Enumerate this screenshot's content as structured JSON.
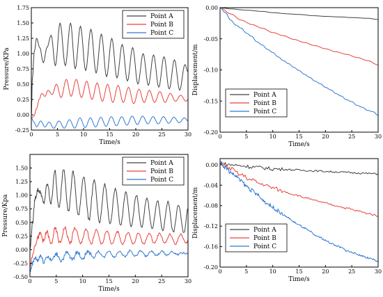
{
  "chart_data": [
    {
      "type": "line",
      "panel": "top-left",
      "xlabel": "Time/s",
      "ylabel": "Pressure/KPa",
      "xlim": [
        0,
        30
      ],
      "ylim": [
        -0.25,
        1.75
      ],
      "xticks": [
        0,
        5,
        10,
        15,
        20,
        25,
        30
      ],
      "xtick_labels": [
        "0",
        "5",
        "10",
        "15",
        "20",
        "25",
        "30"
      ],
      "yticks": [
        -0.25,
        0,
        0.25,
        0.5,
        0.75,
        1,
        1.25,
        1.5,
        1.75
      ],
      "ytick_labels": [
        "-0.25",
        "0.00",
        "0.25",
        "0.50",
        "0.75",
        "1.00",
        "1.25",
        "1.50",
        "1.75"
      ],
      "legend_position": "top-right",
      "noisy": false,
      "series": [
        {
          "name": "Point A",
          "color": "#404040",
          "x": [
            0,
            0.2,
            0.6,
            1.0,
            1.6,
            2.3,
            3.0,
            3.8,
            4.6,
            5.5,
            6.5,
            7.5,
            8.4,
            9.4,
            10.4,
            11.4,
            12.4,
            13.4,
            14.4,
            15.4,
            16.4,
            17.4,
            18.4,
            19.4,
            20.4,
            21.4,
            22.4,
            23.4,
            24.4,
            25.4,
            26.4,
            27.4,
            28.4,
            29.4,
            30
          ],
          "y": [
            0,
            0.6,
            1.05,
            1.25,
            1.1,
            0.85,
            1.1,
            1.3,
            0.8,
            1.5,
            0.8,
            1.5,
            0.75,
            1.45,
            0.72,
            1.4,
            0.68,
            1.32,
            0.62,
            1.25,
            0.6,
            1.15,
            0.55,
            1.1,
            0.5,
            1.0,
            0.48,
            0.98,
            0.45,
            0.95,
            0.42,
            0.9,
            0.4,
            0.82,
            0.7
          ]
        },
        {
          "name": "Point B",
          "color": "#e8413c",
          "x": [
            0,
            0.5,
            1.0,
            1.5,
            2.0,
            2.6,
            3.2,
            4.0,
            4.8,
            5.7,
            6.7,
            7.6,
            8.6,
            9.6,
            10.6,
            11.6,
            12.6,
            13.6,
            14.6,
            15.6,
            16.6,
            17.6,
            18.6,
            19.6,
            20.6,
            21.6,
            22.6,
            23.6,
            24.6,
            25.6,
            26.6,
            27.6,
            28.6,
            29.6,
            30
          ],
          "y": [
            -0.05,
            -0.02,
            0.1,
            0.25,
            0.35,
            0.3,
            0.4,
            0.33,
            0.5,
            0.28,
            0.58,
            0.3,
            0.58,
            0.28,
            0.55,
            0.25,
            0.52,
            0.22,
            0.5,
            0.2,
            0.48,
            0.2,
            0.45,
            0.18,
            0.42,
            0.2,
            0.4,
            0.2,
            0.38,
            0.2,
            0.35,
            0.22,
            0.32,
            0.22,
            0.25
          ]
        },
        {
          "name": "Point C",
          "color": "#2f78d2",
          "x": [
            0,
            0.5,
            1.0,
            1.8,
            2.6,
            3.4,
            4.3,
            5.3,
            6.3,
            7.3,
            8.3,
            9.3,
            10.3,
            11.3,
            12.3,
            13.3,
            14.3,
            15.3,
            16.3,
            17.3,
            18.3,
            19.3,
            20.3,
            21.3,
            22.3,
            23.3,
            24.3,
            25.3,
            26.3,
            27.3,
            28.3,
            29.3,
            30
          ],
          "y": [
            -0.05,
            -0.12,
            -0.2,
            -0.1,
            -0.2,
            -0.12,
            -0.22,
            -0.1,
            -0.22,
            -0.08,
            -0.22,
            -0.05,
            -0.21,
            -0.05,
            -0.2,
            -0.04,
            -0.19,
            -0.03,
            -0.18,
            -0.03,
            -0.17,
            -0.02,
            -0.16,
            -0.02,
            -0.15,
            -0.03,
            -0.15,
            -0.03,
            -0.14,
            -0.04,
            -0.13,
            -0.05,
            -0.1
          ]
        }
      ]
    },
    {
      "type": "line",
      "panel": "top-right",
      "xlabel": "Time/s",
      "ylabel": "Displacement/m",
      "xlim": [
        0,
        30
      ],
      "ylim": [
        -0.2,
        0
      ],
      "xticks": [
        0,
        5,
        10,
        15,
        20,
        25,
        30
      ],
      "xtick_labels": [
        "0",
        "5",
        "10",
        "15",
        "20",
        "25",
        "30"
      ],
      "yticks": [
        -0.2,
        -0.15,
        -0.1,
        -0.05,
        0
      ],
      "ytick_labels": [
        "-0.20",
        "-0.15",
        "-0.10",
        "-0.05",
        "0.00"
      ],
      "legend_position": "bottom-left",
      "noisy": false,
      "series": [
        {
          "name": "Point A",
          "color": "#404040",
          "x": [
            0,
            2,
            5,
            8,
            10,
            13,
            15,
            18,
            20,
            23,
            25,
            28,
            30
          ],
          "y": [
            0,
            -0.002,
            -0.004,
            -0.006,
            -0.008,
            -0.01,
            -0.011,
            -0.013,
            -0.014,
            -0.015,
            -0.016,
            -0.017,
            -0.019
          ]
        },
        {
          "name": "Point B",
          "color": "#e8413c",
          "x": [
            0,
            2,
            4,
            6,
            8,
            10,
            12,
            14,
            16,
            18,
            20,
            22,
            24,
            26,
            28,
            30
          ],
          "y": [
            0,
            -0.01,
            -0.02,
            -0.027,
            -0.033,
            -0.04,
            -0.045,
            -0.051,
            -0.056,
            -0.061,
            -0.066,
            -0.071,
            -0.075,
            -0.08,
            -0.085,
            -0.092
          ]
        },
        {
          "name": "Point C",
          "color": "#2f78d2",
          "x": [
            0,
            1,
            2,
            3,
            4,
            5,
            6,
            7,
            8,
            9,
            10,
            11,
            12,
            13,
            14,
            15,
            16,
            17,
            18,
            19,
            20,
            21,
            22,
            23,
            24,
            25,
            26,
            27,
            28,
            29,
            30
          ],
          "y": [
            0,
            -0.008,
            -0.02,
            -0.028,
            -0.033,
            -0.041,
            -0.046,
            -0.055,
            -0.06,
            -0.067,
            -0.072,
            -0.079,
            -0.085,
            -0.09,
            -0.096,
            -0.101,
            -0.107,
            -0.112,
            -0.118,
            -0.122,
            -0.128,
            -0.132,
            -0.138,
            -0.142,
            -0.148,
            -0.151,
            -0.157,
            -0.16,
            -0.165,
            -0.167,
            -0.173
          ]
        }
      ]
    },
    {
      "type": "line",
      "panel": "bottom-left",
      "xlabel": "Time/s",
      "ylabel": "Pressure/Kpa",
      "xlim": [
        0,
        30
      ],
      "ylim": [
        -0.5,
        1.75
      ],
      "xticks": [
        0,
        5,
        10,
        15,
        20,
        25,
        30
      ],
      "xtick_labels": [
        "0",
        "5",
        "10",
        "15",
        "20",
        "25",
        "30"
      ],
      "yticks": [
        -0.5,
        -0.25,
        0,
        0.25,
        0.5,
        0.75,
        1,
        1.25,
        1.5
      ],
      "ytick_labels": [
        "-0.50",
        "-0.25",
        "0.00",
        "0.25",
        "0.50",
        "0.75",
        "1.00",
        "1.25",
        "1.50"
      ],
      "legend_position": "top-right",
      "noisy": true,
      "series": [
        {
          "name": "Point A",
          "color": "#404040",
          "x": [
            0,
            0.5,
            1.0,
            1.5,
            2.0,
            2.6,
            3.3,
            4.0,
            4.7,
            5.5,
            6.4,
            7.3,
            8.2,
            9.2,
            10.2,
            11.2,
            12.2,
            13.2,
            14.2,
            15.2,
            16.2,
            17.2,
            18.2,
            19.2,
            20.2,
            21.2,
            22.2,
            23.2,
            24.2,
            25.2,
            26.2,
            27.2,
            28.2,
            29.2,
            30
          ],
          "y": [
            0,
            0.5,
            0.95,
            1.1,
            1.05,
            0.85,
            1.2,
            0.85,
            1.45,
            0.75,
            1.5,
            0.7,
            1.42,
            0.62,
            1.35,
            0.55,
            1.28,
            0.5,
            1.2,
            0.48,
            1.12,
            0.45,
            1.05,
            0.42,
            1.0,
            0.4,
            0.95,
            0.38,
            0.9,
            0.35,
            0.88,
            0.32,
            0.82,
            0.3,
            0.75
          ]
        },
        {
          "name": "Point B",
          "color": "#e8413c",
          "x": [
            0,
            0.5,
            1.0,
            1.5,
            2.0,
            2.6,
            3.2,
            4.0,
            4.8,
            5.7,
            6.6,
            7.6,
            8.6,
            9.6,
            10.6,
            11.6,
            12.6,
            13.6,
            14.6,
            15.6,
            16.6,
            17.6,
            18.6,
            19.6,
            20.6,
            21.6,
            22.6,
            23.6,
            24.6,
            25.6,
            26.6,
            27.6,
            28.6,
            29.6,
            30
          ],
          "y": [
            -0.3,
            -0.1,
            0.1,
            0.22,
            0.3,
            0.15,
            0.33,
            0.1,
            0.38,
            0.12,
            0.4,
            0.12,
            0.4,
            0.1,
            0.38,
            0.1,
            0.36,
            0.1,
            0.35,
            0.1,
            0.33,
            0.1,
            0.32,
            0.1,
            0.3,
            0.1,
            0.3,
            0.12,
            0.3,
            0.12,
            0.28,
            0.1,
            0.28,
            0.12,
            0.15
          ]
        },
        {
          "name": "Point C",
          "color": "#2f78d2",
          "x": [
            0,
            0.5,
            1.0,
            1.5,
            2.0,
            2.6,
            3.3,
            4.1,
            5.0,
            6.0,
            7.0,
            8.0,
            9.0,
            10.0,
            11.0,
            12.0,
            13.0,
            14.0,
            15.0,
            16.0,
            17.0,
            18.0,
            19.0,
            20.0,
            21.0,
            22.0,
            23.0,
            24.0,
            25.0,
            26.0,
            27.0,
            28.0,
            29.0,
            30
          ],
          "y": [
            -0.4,
            -0.25,
            -0.15,
            -0.2,
            -0.1,
            -0.22,
            -0.12,
            -0.2,
            -0.08,
            -0.2,
            -0.06,
            -0.18,
            -0.05,
            -0.16,
            -0.03,
            -0.15,
            -0.03,
            -0.14,
            -0.02,
            -0.14,
            -0.02,
            -0.13,
            -0.02,
            -0.12,
            -0.02,
            -0.12,
            -0.03,
            -0.11,
            -0.03,
            -0.1,
            -0.04,
            -0.09,
            -0.06,
            -0.08
          ]
        }
      ]
    },
    {
      "type": "line",
      "panel": "bottom-right",
      "xlabel": "Time/s",
      "ylabel": "Displacement/m",
      "xlim": [
        0,
        30
      ],
      "ylim": [
        -0.2,
        0.012
      ],
      "xticks": [
        0,
        5,
        10,
        15,
        20,
        25,
        30
      ],
      "xtick_labels": [
        "0",
        "5",
        "10",
        "15",
        "20",
        "25",
        "30"
      ],
      "yticks": [
        -0.2,
        -0.16,
        -0.12,
        -0.08,
        -0.04,
        0
      ],
      "ytick_labels": [
        "-0.20",
        "-0.16",
        "-0.12",
        "-0.08",
        "-0.04",
        "0.00"
      ],
      "legend_position": "bottom-left",
      "noisy": true,
      "series": [
        {
          "name": "Point A",
          "color": "#404040",
          "x": [
            0,
            2,
            4,
            6,
            8,
            10,
            12,
            14,
            16,
            18,
            20,
            22,
            24,
            26,
            28,
            30
          ],
          "y": [
            0.002,
            0,
            -0.002,
            -0.004,
            -0.006,
            -0.008,
            -0.009,
            -0.01,
            -0.011,
            -0.012,
            -0.013,
            -0.014,
            -0.015,
            -0.016,
            -0.017,
            -0.018
          ]
        },
        {
          "name": "Point B",
          "color": "#e8413c",
          "x": [
            0,
            2,
            4,
            6,
            8,
            10,
            12,
            14,
            16,
            18,
            20,
            22,
            24,
            26,
            28,
            30
          ],
          "y": [
            0.004,
            -0.008,
            -0.02,
            -0.03,
            -0.038,
            -0.045,
            -0.052,
            -0.058,
            -0.064,
            -0.07,
            -0.075,
            -0.08,
            -0.085,
            -0.09,
            -0.095,
            -0.1
          ]
        },
        {
          "name": "Point C",
          "color": "#2f78d2",
          "x": [
            0,
            1,
            2,
            3,
            4,
            5,
            6,
            7,
            8,
            9,
            10,
            11,
            12,
            13,
            14,
            15,
            16,
            17,
            18,
            19,
            20,
            21,
            22,
            23,
            24,
            25,
            26,
            27,
            28,
            29,
            30
          ],
          "y": [
            0.005,
            -0.005,
            -0.015,
            -0.022,
            -0.032,
            -0.042,
            -0.05,
            -0.058,
            -0.068,
            -0.076,
            -0.083,
            -0.09,
            -0.098,
            -0.104,
            -0.112,
            -0.118,
            -0.124,
            -0.13,
            -0.138,
            -0.142,
            -0.148,
            -0.153,
            -0.158,
            -0.162,
            -0.168,
            -0.171,
            -0.175,
            -0.178,
            -0.182,
            -0.185,
            -0.19
          ]
        }
      ]
    }
  ]
}
